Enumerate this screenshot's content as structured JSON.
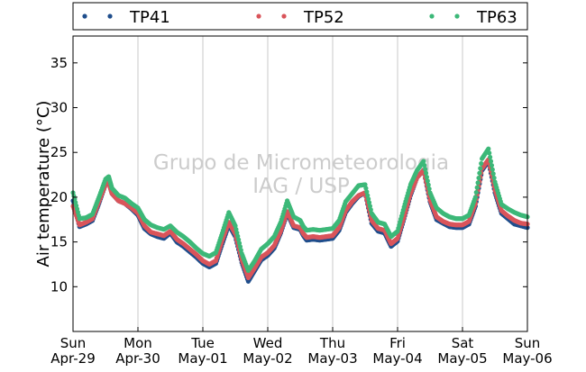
{
  "chart_data": {
    "type": "scatter",
    "ylabel": "Air temperature (°C)",
    "watermark": [
      "Grupo de Micrometeorologia",
      "IAG / USP"
    ],
    "ylim": [
      5,
      38
    ],
    "yticks": [
      10,
      15,
      20,
      25,
      30,
      35
    ],
    "xlim": [
      "2017-04-29",
      "2017-05-06"
    ],
    "xtick_labels": [
      {
        "day": "Sun",
        "date": "Apr-29"
      },
      {
        "day": "Mon",
        "date": "Apr-30"
      },
      {
        "day": "Tue",
        "date": "May-01"
      },
      {
        "day": "Wed",
        "date": "May-02"
      },
      {
        "day": "Thu",
        "date": "May-03"
      },
      {
        "day": "Fri",
        "date": "May-04"
      },
      {
        "day": "Sat",
        "date": "May-05"
      },
      {
        "day": "Sun",
        "date": "May-06"
      }
    ],
    "grid": "vertical",
    "legend_position": "top",
    "series": [
      {
        "name": "TP41",
        "color": "#1f4e8c"
      },
      {
        "name": "TP52",
        "color": "#d9545a"
      },
      {
        "name": "TP63",
        "color": "#3cb878"
      }
    ],
    "x": [
      0,
      0.1,
      0.2,
      0.3,
      0.4,
      0.5,
      0.55,
      0.6,
      0.7,
      0.8,
      0.9,
      1.0,
      1.1,
      1.2,
      1.3,
      1.4,
      1.5,
      1.6,
      1.7,
      1.8,
      1.9,
      2.0,
      2.1,
      2.2,
      2.3,
      2.4,
      2.5,
      2.6,
      2.7,
      2.8,
      2.9,
      3.0,
      3.1,
      3.2,
      3.3,
      3.4,
      3.5,
      3.55,
      3.6,
      3.7,
      3.8,
      3.9,
      4.0,
      4.1,
      4.2,
      4.3,
      4.4,
      4.5,
      4.6,
      4.7,
      4.8,
      4.9,
      5.0,
      5.1,
      5.2,
      5.3,
      5.4,
      5.5,
      5.6,
      5.7,
      5.8,
      5.9,
      6.0,
      6.1,
      6.2,
      6.3,
      6.4,
      6.5,
      6.6,
      6.7,
      6.8,
      6.9,
      7.0
    ],
    "values": {
      "TP41": [
        19.6,
        16.7,
        17.0,
        17.4,
        19.3,
        21.4,
        21.7,
        20.4,
        19.6,
        19.3,
        18.7,
        18.0,
        16.5,
        15.9,
        15.6,
        15.4,
        16.0,
        15.0,
        14.5,
        13.9,
        13.3,
        12.6,
        12.2,
        12.6,
        14.8,
        16.9,
        15.6,
        12.7,
        10.6,
        11.8,
        13.0,
        13.5,
        14.3,
        16.0,
        18.2,
        16.6,
        16.4,
        15.7,
        15.2,
        15.3,
        15.2,
        15.3,
        15.4,
        16.3,
        18.3,
        19.3,
        20.1,
        20.5,
        17.1,
        16.2,
        16.0,
        14.5,
        15.1,
        17.6,
        20.2,
        22.2,
        23.0,
        19.5,
        17.5,
        17.1,
        16.7,
        16.6,
        16.6,
        17.0,
        19.0,
        23.0,
        24.0,
        20.5,
        18.2,
        17.6,
        17.0,
        16.8,
        16.6
      ],
      "TP52": [
        19.0,
        16.9,
        17.2,
        17.6,
        19.5,
        21.4,
        21.6,
        20.4,
        19.6,
        19.3,
        18.8,
        18.2,
        16.8,
        16.1,
        15.9,
        15.7,
        16.2,
        15.3,
        14.8,
        14.2,
        13.6,
        12.9,
        12.5,
        12.9,
        15.2,
        17.2,
        15.9,
        13.0,
        11.0,
        12.1,
        13.3,
        13.8,
        14.6,
        16.2,
        18.4,
        16.8,
        16.6,
        15.9,
        15.5,
        15.6,
        15.5,
        15.6,
        15.7,
        16.6,
        18.5,
        19.5,
        20.2,
        20.5,
        17.4,
        16.5,
        16.3,
        14.8,
        15.4,
        17.8,
        20.4,
        22.2,
        23.0,
        19.7,
        17.8,
        17.3,
        17.0,
        16.9,
        16.9,
        17.3,
        19.3,
        23.2,
        24.2,
        20.8,
        18.5,
        17.9,
        17.4,
        17.1,
        17.0
      ],
      "TP63": [
        20.5,
        17.6,
        17.7,
        18.1,
        20.0,
        22.0,
        22.3,
        21.0,
        20.2,
        19.9,
        19.3,
        18.8,
        17.5,
        16.9,
        16.6,
        16.4,
        16.8,
        16.1,
        15.6,
        15.0,
        14.3,
        13.7,
        13.4,
        13.8,
        16.0,
        18.3,
        16.8,
        13.7,
        11.8,
        12.9,
        14.2,
        14.8,
        15.6,
        17.2,
        19.6,
        17.8,
        17.4,
        16.7,
        16.3,
        16.4,
        16.3,
        16.4,
        16.5,
        17.4,
        19.5,
        20.4,
        21.3,
        21.4,
        18.2,
        17.2,
        17.0,
        15.6,
        16.2,
        18.9,
        21.4,
        23.0,
        24.0,
        20.5,
        18.8,
        18.2,
        17.8,
        17.6,
        17.6,
        18.0,
        20.0,
        24.3,
        25.4,
        21.7,
        19.2,
        18.7,
        18.3,
        18.0,
        17.8
      ]
    }
  }
}
